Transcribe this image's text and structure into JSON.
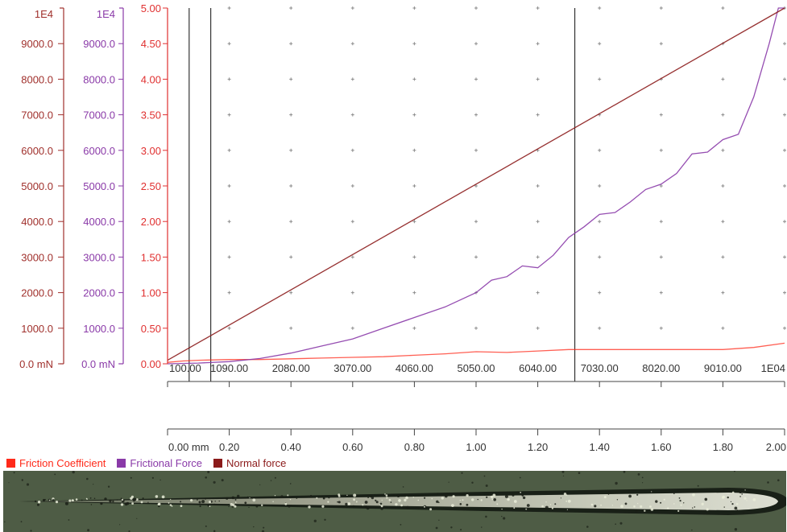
{
  "chart_data": {
    "type": "line",
    "axes": {
      "normal_force_axis": {
        "exponent_label": "1E4",
        "tick_labels": [
          "9000.0",
          "8000.0",
          "7000.0",
          "6000.0",
          "5000.0",
          "4000.0",
          "3000.0",
          "2000.0",
          "1000.0",
          "0.0 mN"
        ],
        "range": [
          0,
          10000
        ],
        "color": "#a0302c"
      },
      "frictional_force_axis": {
        "exponent_label": "1E4",
        "tick_labels": [
          "9000.0",
          "8000.0",
          "7000.0",
          "6000.0",
          "5000.0",
          "4000.0",
          "3000.0",
          "2000.0",
          "1000.0",
          "0.0 mN"
        ],
        "range": [
          0,
          10000
        ],
        "color": "#8a3aa8"
      },
      "friction_coefficient_axis": {
        "tick_labels": [
          "5.00",
          "4.50",
          "4.00",
          "3.50",
          "3.00",
          "2.50",
          "2.00",
          "1.50",
          "1.00",
          "0.50",
          "0.00"
        ],
        "range": [
          0,
          5
        ],
        "color": "#e03030"
      },
      "normal_force_x_axis": {
        "tick_labels": [
          "100.00",
          "1090.00",
          "2080.00",
          "3070.00",
          "4060.00",
          "5050.00",
          "6040.00",
          "7030.00",
          "8020.00",
          "9010.00",
          "1E04"
        ],
        "range": [
          100,
          10000
        ]
      },
      "distance_x_axis": {
        "tick_labels": [
          "0.00 mm",
          "0.20",
          "0.40",
          "0.60",
          "0.80",
          "1.00",
          "1.20",
          "1.40",
          "1.60",
          "1.80",
          "2.00"
        ],
        "unit": "mm",
        "range": [
          0,
          2
        ]
      }
    },
    "grid": "dotted",
    "markers_x_mm": [
      0.07,
      0.14,
      1.32
    ],
    "legend_position": "bottom-left",
    "series": [
      {
        "name": "Friction Coefficient",
        "color": "#ff2a1a",
        "x_mm": [
          0,
          0.05,
          0.1,
          0.2,
          0.3,
          0.4,
          0.5,
          0.6,
          0.7,
          0.8,
          0.9,
          1.0,
          1.1,
          1.2,
          1.3,
          1.4,
          1.5,
          1.6,
          1.7,
          1.8,
          1.9,
          2.0
        ],
        "y": [
          0.02,
          0.04,
          0.05,
          0.06,
          0.06,
          0.07,
          0.08,
          0.09,
          0.1,
          0.12,
          0.14,
          0.17,
          0.16,
          0.18,
          0.2,
          0.2,
          0.2,
          0.2,
          0.2,
          0.2,
          0.23,
          0.29
        ]
      },
      {
        "name": "Frictional Force",
        "color": "#8a3aa8",
        "x_mm": [
          0,
          0.1,
          0.2,
          0.3,
          0.4,
          0.5,
          0.6,
          0.7,
          0.8,
          0.9,
          1.0,
          1.05,
          1.1,
          1.15,
          1.2,
          1.25,
          1.3,
          1.35,
          1.4,
          1.45,
          1.5,
          1.55,
          1.6,
          1.65,
          1.7,
          1.75,
          1.8,
          1.85,
          1.9,
          1.95,
          1.98,
          2.0
        ],
        "y": [
          0,
          20,
          60,
          150,
          300,
          500,
          700,
          1000,
          1300,
          1600,
          2000,
          2350,
          2450,
          2750,
          2700,
          3050,
          3550,
          3850,
          4200,
          4250,
          4550,
          4900,
          5050,
          5350,
          5900,
          5950,
          6300,
          6450,
          7500,
          9000,
          10200,
          10800
        ]
      },
      {
        "name": "Normal force",
        "color": "#8b1a1a",
        "x_mm": [
          0,
          2.0
        ],
        "y": [
          100,
          10000
        ]
      }
    ]
  }
}
